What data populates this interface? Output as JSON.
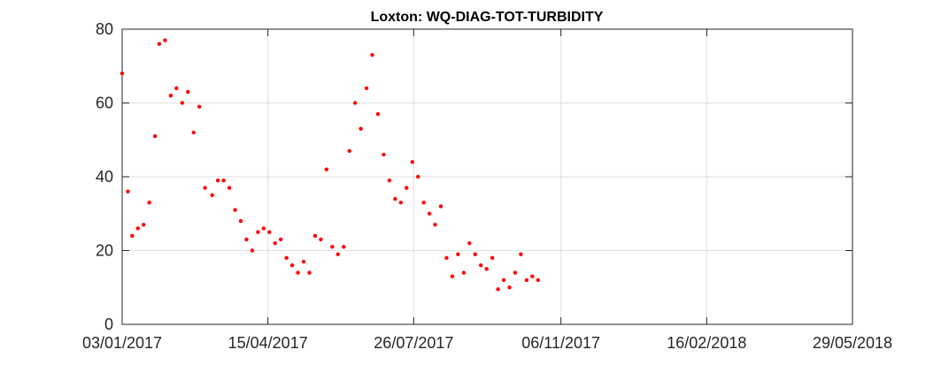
{
  "chart_data": {
    "type": "scatter",
    "title": "Loxton: WQ-DIAG-TOT-TURBIDITY",
    "xlabel": "",
    "ylabel": "",
    "x_axis": {
      "type": "date",
      "range": [
        "03/01/2017",
        "29/05/2018"
      ],
      "tick_labels": [
        "03/01/2017",
        "15/04/2017",
        "26/07/2017",
        "06/11/2017",
        "16/02/2018",
        "29/05/2018"
      ]
    },
    "ylim": [
      0,
      80
    ],
    "y_ticks": [
      0,
      20,
      40,
      60,
      80
    ],
    "grid": true,
    "marker_color": "#ff0000",
    "series": [
      {
        "points": [
          [
            "03/01/2017",
            68
          ],
          [
            "07/01/2017",
            36
          ],
          [
            "10/01/2017",
            24
          ],
          [
            "14/01/2017",
            26
          ],
          [
            "18/01/2017",
            27
          ],
          [
            "22/01/2017",
            33
          ],
          [
            "26/01/2017",
            51
          ],
          [
            "29/01/2017",
            76
          ],
          [
            "02/02/2017",
            77
          ],
          [
            "06/02/2017",
            62
          ],
          [
            "10/02/2017",
            64
          ],
          [
            "14/02/2017",
            60
          ],
          [
            "18/02/2017",
            63
          ],
          [
            "22/02/2017",
            52
          ],
          [
            "26/02/2017",
            59
          ],
          [
            "02/03/2017",
            37
          ],
          [
            "07/03/2017",
            35
          ],
          [
            "11/03/2017",
            39
          ],
          [
            "15/03/2017",
            39
          ],
          [
            "19/03/2017",
            37
          ],
          [
            "23/03/2017",
            31
          ],
          [
            "27/03/2017",
            28
          ],
          [
            "31/03/2017",
            23
          ],
          [
            "04/04/2017",
            20
          ],
          [
            "08/04/2017",
            25
          ],
          [
            "12/04/2017",
            26
          ],
          [
            "16/04/2017",
            25
          ],
          [
            "20/04/2017",
            22
          ],
          [
            "24/04/2017",
            23
          ],
          [
            "28/04/2017",
            18
          ],
          [
            "02/05/2017",
            16
          ],
          [
            "06/05/2017",
            14
          ],
          [
            "10/05/2017",
            17
          ],
          [
            "14/05/2017",
            14
          ],
          [
            "18/05/2017",
            24
          ],
          [
            "22/05/2017",
            23
          ],
          [
            "26/05/2017",
            42
          ],
          [
            "30/05/2017",
            21
          ],
          [
            "03/06/2017",
            19
          ],
          [
            "07/06/2017",
            21
          ],
          [
            "11/06/2017",
            47
          ],
          [
            "15/06/2017",
            60
          ],
          [
            "19/06/2017",
            53
          ],
          [
            "23/06/2017",
            64
          ],
          [
            "27/06/2017",
            73
          ],
          [
            "01/07/2017",
            57
          ],
          [
            "05/07/2017",
            46
          ],
          [
            "09/07/2017",
            39
          ],
          [
            "13/07/2017",
            34
          ],
          [
            "17/07/2017",
            33
          ],
          [
            "21/07/2017",
            37
          ],
          [
            "25/07/2017",
            44
          ],
          [
            "29/07/2017",
            40
          ],
          [
            "02/08/2017",
            33
          ],
          [
            "06/08/2017",
            30
          ],
          [
            "10/08/2017",
            27
          ],
          [
            "14/08/2017",
            32
          ],
          [
            "18/08/2017",
            18
          ],
          [
            "22/08/2017",
            13
          ],
          [
            "26/08/2017",
            19
          ],
          [
            "30/08/2017",
            14
          ],
          [
            "03/09/2017",
            22
          ],
          [
            "07/09/2017",
            19
          ],
          [
            "11/09/2017",
            16
          ],
          [
            "15/09/2017",
            15
          ],
          [
            "19/09/2017",
            18
          ],
          [
            "23/09/2017",
            9.5
          ],
          [
            "27/09/2017",
            12
          ],
          [
            "01/10/2017",
            10
          ],
          [
            "05/10/2017",
            14
          ],
          [
            "09/10/2017",
            19
          ],
          [
            "13/10/2017",
            12
          ],
          [
            "17/10/2017",
            13
          ],
          [
            "21/10/2017",
            12
          ]
        ]
      }
    ]
  }
}
